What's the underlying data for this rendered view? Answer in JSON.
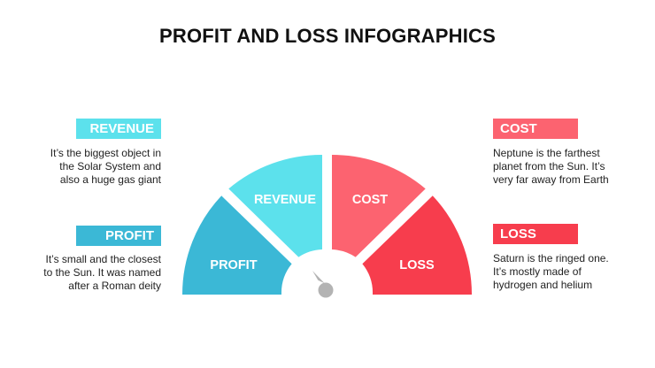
{
  "title": "PROFIT AND LOSS INFOGRAPHICS",
  "colors": {
    "revenue": "#5ce1ec",
    "profit": "#3bb8d6",
    "cost": "#fc6370",
    "loss": "#f73d4d",
    "needle": "#b3b3b3",
    "text": "#222222"
  },
  "gauge": {
    "segments": [
      {
        "key": "profit",
        "label": "PROFIT"
      },
      {
        "key": "revenue",
        "label": "REVENUE"
      },
      {
        "key": "cost",
        "label": "COST"
      },
      {
        "key": "loss",
        "label": "LOSS"
      }
    ]
  },
  "panels": {
    "revenue": {
      "label": "REVENUE",
      "lines": [
        "It’s the biggest object in",
        "the Solar System and",
        "also a huge gas giant"
      ]
    },
    "profit": {
      "label": "PROFIT",
      "lines": [
        "It’s small and the closest",
        "to the Sun. It was named",
        "after a Roman deity"
      ]
    },
    "cost": {
      "label": "COST",
      "lines": [
        "Neptune is the farthest",
        "planet from the Sun. It’s",
        "very far away from Earth"
      ]
    },
    "loss": {
      "label": "LOSS",
      "lines": [
        "Saturn is the ringed one.",
        "It’s mostly made of",
        "hydrogen and helium"
      ]
    }
  }
}
